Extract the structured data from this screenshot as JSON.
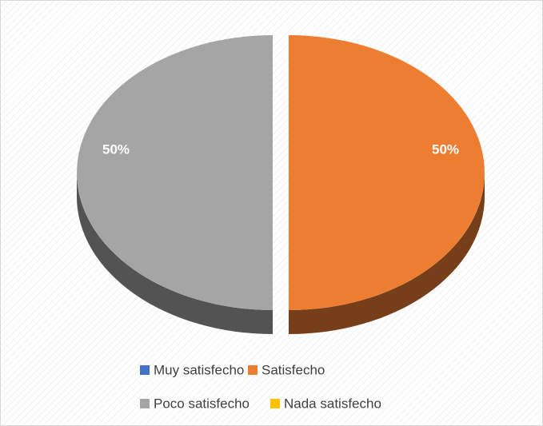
{
  "chart_data": {
    "type": "pie",
    "categories": [
      "Muy satisfecho",
      "Satisfecho",
      "Poco satisfecho",
      "Nada satisfecho"
    ],
    "values": [
      0,
      50,
      50,
      0
    ],
    "value_labels": [
      null,
      "50%",
      "50%",
      null
    ],
    "colors": [
      "#4472c4",
      "#ed7d31",
      "#a5a5a5",
      "#ffc000"
    ]
  }
}
